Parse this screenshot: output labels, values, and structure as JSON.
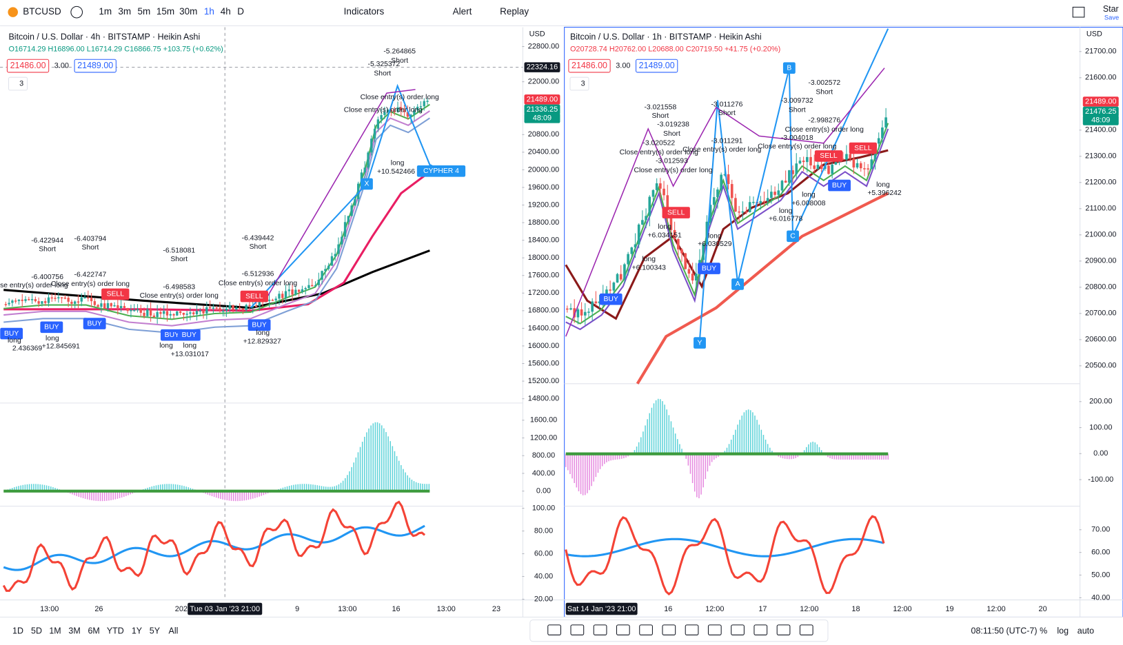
{
  "toolbar": {
    "symbol": "BTCUSD",
    "intervals": [
      "1m",
      "3m",
      "5m",
      "15m",
      "30m",
      "1h",
      "4h",
      "D"
    ],
    "indicators": "Indicators",
    "alert": "Alert",
    "replay": "Replay",
    "star": "Star",
    "save": "Save"
  },
  "left_pane": {
    "title": "Bitcoin / U.S. Dollar · 4h · BITSTAMP · Heikin Ashi",
    "ohlc": {
      "open": "O16714.29",
      "high": "H16896.00",
      "low": "L16714.29",
      "close": "C16866.75",
      "change": "+103.75 (+0.62%)"
    },
    "sell": "21486.00",
    "spread": "3.00",
    "buy": "21489.00",
    "indicator_count": "3",
    "currency": "USD",
    "price_ticks": [
      {
        "value": 22800,
        "label": "22800.00"
      },
      {
        "value": 22000,
        "label": "22000.00"
      },
      {
        "value": 20800,
        "label": "20800.00"
      },
      {
        "value": 20400,
        "label": "20400.00"
      },
      {
        "value": 20000,
        "label": "20000.00"
      },
      {
        "value": 19600,
        "label": "19600.00"
      },
      {
        "value": 19200,
        "label": "19200.00"
      },
      {
        "value": 18800,
        "label": "18800.00"
      },
      {
        "value": 18400,
        "label": "18400.00"
      },
      {
        "value": 18000,
        "label": "18000.00"
      },
      {
        "value": 17600,
        "label": "17600.00"
      },
      {
        "value": 17200,
        "label": "17200.00"
      },
      {
        "value": 16800,
        "label": "16800.00"
      },
      {
        "value": 16400,
        "label": "16400.00"
      },
      {
        "value": 16000,
        "label": "16000.00"
      },
      {
        "value": 15600,
        "label": "15600.00"
      },
      {
        "value": 15200,
        "label": "15200.00"
      },
      {
        "value": 14800,
        "label": "14800.00"
      }
    ],
    "price_labels": {
      "crosshair": "22324.16",
      "last": "21489.00",
      "ma": "21336.25",
      "countdown": "48:09"
    },
    "osc_ticks": [
      {
        "value": 1600,
        "label": "1600.00"
      },
      {
        "value": 1200,
        "label": "1200.00"
      },
      {
        "value": 800,
        "label": "800.00"
      },
      {
        "value": 400,
        "label": "400.00"
      },
      {
        "value": 0,
        "label": "0.00"
      }
    ],
    "rsi_ticks": [
      {
        "value": 100,
        "label": "100.00"
      },
      {
        "value": 80,
        "label": "80.00"
      },
      {
        "value": 60,
        "label": "60.00"
      },
      {
        "value": 40,
        "label": "40.00"
      },
      {
        "value": 20,
        "label": "20.00"
      }
    ],
    "time_ticks": [
      "13:00",
      "26",
      "202",
      "9",
      "13:00",
      "16",
      "13:00",
      "23"
    ],
    "time_cursor": "Tue 03 Jan '23 21:00",
    "annotations": [
      "-6.422944",
      "Short",
      "-6.400756",
      "Close entry(s) order long",
      "-6.403794",
      "Short",
      "-6.422747",
      "Close entry(s) order long",
      "SELL",
      "BUY",
      "long",
      "+12.845691",
      "BUY",
      "-6.518081",
      "Short",
      "-6.498583",
      "Close entry(s) order long",
      "BUY",
      "BUY",
      "long",
      "long",
      "+13.031017",
      "-6.439442",
      "Short",
      "-6.512936",
      "Close entry(s) order long",
      "SELL",
      "BUY",
      "long",
      "+12.829327",
      "-5.264865",
      "Short",
      "-5.325372",
      "Short",
      "Close entry(s) order long",
      "Close entry(s) order long",
      "long",
      "+10.542466",
      "CYPHER 4",
      "X",
      "BUY",
      "long",
      "2.436369"
    ]
  },
  "right_pane": {
    "title": "Bitcoin / U.S. Dollar · 1h · BITSTAMP · Heikin Ashi",
    "ohlc": {
      "open": "O20728.74",
      "high": "H20762.00",
      "low": "L20688.00",
      "close": "C20719.50",
      "change": "+41.75 (+0.20%)"
    },
    "sell": "21486.00",
    "spread": "3.00",
    "buy": "21489.00",
    "indicator_count": "3",
    "currency": "USD",
    "price_ticks": [
      {
        "value": 21700,
        "label": "21700.00"
      },
      {
        "value": 21600,
        "label": "21600.00"
      },
      {
        "value": 21400,
        "label": "21400.00"
      },
      {
        "value": 21300,
        "label": "21300.00"
      },
      {
        "value": 21200,
        "label": "21200.00"
      },
      {
        "value": 21100,
        "label": "21100.00"
      },
      {
        "value": 21000,
        "label": "21000.00"
      },
      {
        "value": 20900,
        "label": "20900.00"
      },
      {
        "value": 20800,
        "label": "20800.00"
      },
      {
        "value": 20700,
        "label": "20700.00"
      },
      {
        "value": 20600,
        "label": "20600.00"
      },
      {
        "value": 20500,
        "label": "20500.00"
      }
    ],
    "price_labels": {
      "last": "21489.00",
      "ma": "21476.25",
      "countdown": "48:09"
    },
    "osc_ticks": [
      {
        "value": 200,
        "label": "200.00"
      },
      {
        "value": 100,
        "label": "100.00"
      },
      {
        "value": 0,
        "label": "0.00"
      },
      {
        "value": -100,
        "label": "-100.00"
      }
    ],
    "rsi_ticks": [
      {
        "value": 70,
        "label": "70.00"
      },
      {
        "value": 60,
        "label": "60.00"
      },
      {
        "value": 50,
        "label": "50.00"
      },
      {
        "value": 40,
        "label": "40.00"
      }
    ],
    "time_ticks": [
      "16",
      "12:00",
      "17",
      "12:00",
      "18",
      "12:00",
      "19",
      "12:00",
      "20"
    ],
    "time_cursor": "Sat 14 Jan '23 21:00",
    "annotations": [
      "-3.021558",
      "Short",
      "-3.019238",
      "Short",
      "-3.020522",
      "Close entry(s) order long",
      "-3.012593",
      "Close entry(s) order long",
      "-3.011276",
      "Short",
      "-3.011291",
      "Close entry(s) order long",
      "-3.009732",
      "Short",
      "-3.002572",
      "Short",
      "-2.998276",
      "Close entry(s) order long",
      "-3.004018",
      "Close entry(s) order long",
      "SELL",
      "SELL",
      "SELL",
      "long",
      "+6.034151",
      "long",
      "+6.100343",
      "long",
      "+6.030529",
      "BUY",
      "BUY",
      "long",
      "+6.008008",
      "long",
      "+6.016778",
      "BUY",
      "long",
      "+5.396242",
      "B",
      "C",
      "A",
      "Y"
    ]
  },
  "bottom_bar": {
    "ranges": [
      "1D",
      "5D",
      "1M",
      "3M",
      "6M",
      "YTD",
      "1Y",
      "5Y",
      "All"
    ],
    "clock": "08:11:50 (UTC-7)",
    "percent": "%",
    "log": "log",
    "auto": "auto"
  }
}
